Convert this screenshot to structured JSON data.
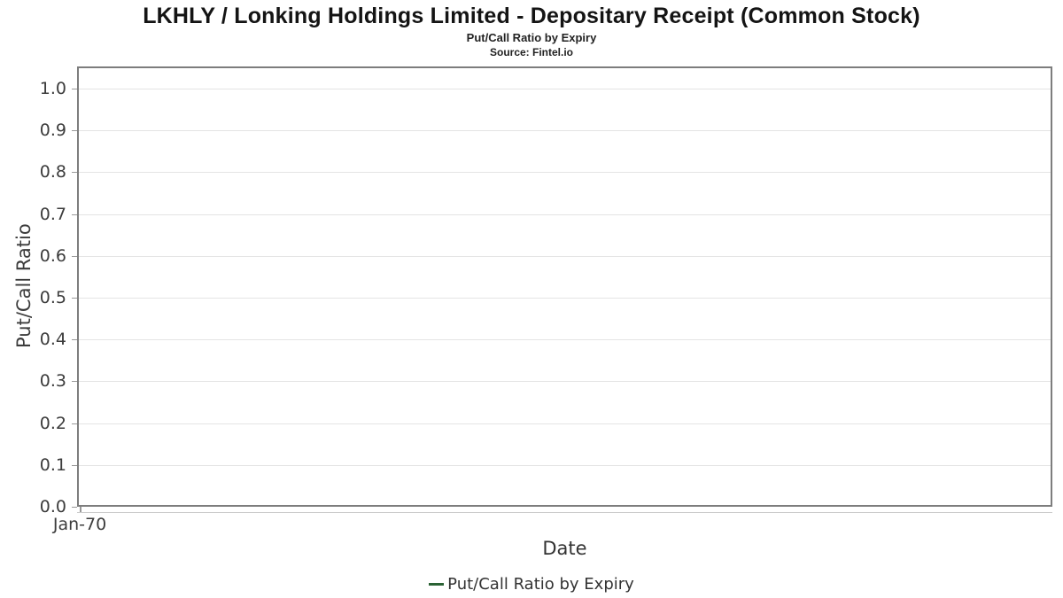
{
  "header": {
    "title": "LKHLY / Lonking Holdings Limited - Depositary Receipt (Common Stock)",
    "subtitle": "Put/Call Ratio by Expiry",
    "source": "Source: Fintel.io"
  },
  "chart_data": {
    "type": "line",
    "title": "Put/Call Ratio by Expiry",
    "xlabel": "Date",
    "ylabel": "Put/Call Ratio",
    "ylim": [
      0,
      1.053
    ],
    "y_ticks": [
      0.0,
      0.1,
      0.2,
      0.3,
      0.4,
      0.5,
      0.6,
      0.7,
      0.8,
      0.9,
      1.0
    ],
    "x_tick_labels": [
      "Jan-70"
    ],
    "grid": true,
    "legend_position": "bottom-center",
    "series": [
      {
        "name": "Put/Call Ratio by Expiry",
        "color": "#2a6234",
        "x": [],
        "values": []
      }
    ]
  },
  "legend": {
    "items": [
      {
        "label": "Put/Call Ratio by Expiry",
        "color": "#2a6234"
      }
    ]
  },
  "colors": {
    "grid": "#e4e4e4",
    "frame": "#7d7d7d",
    "axis_line": "#cccccc",
    "tick_mark": "#999999",
    "tick_text": "#3c3c3c",
    "title_text": "#141414",
    "accent_green": "#2a6234"
  }
}
